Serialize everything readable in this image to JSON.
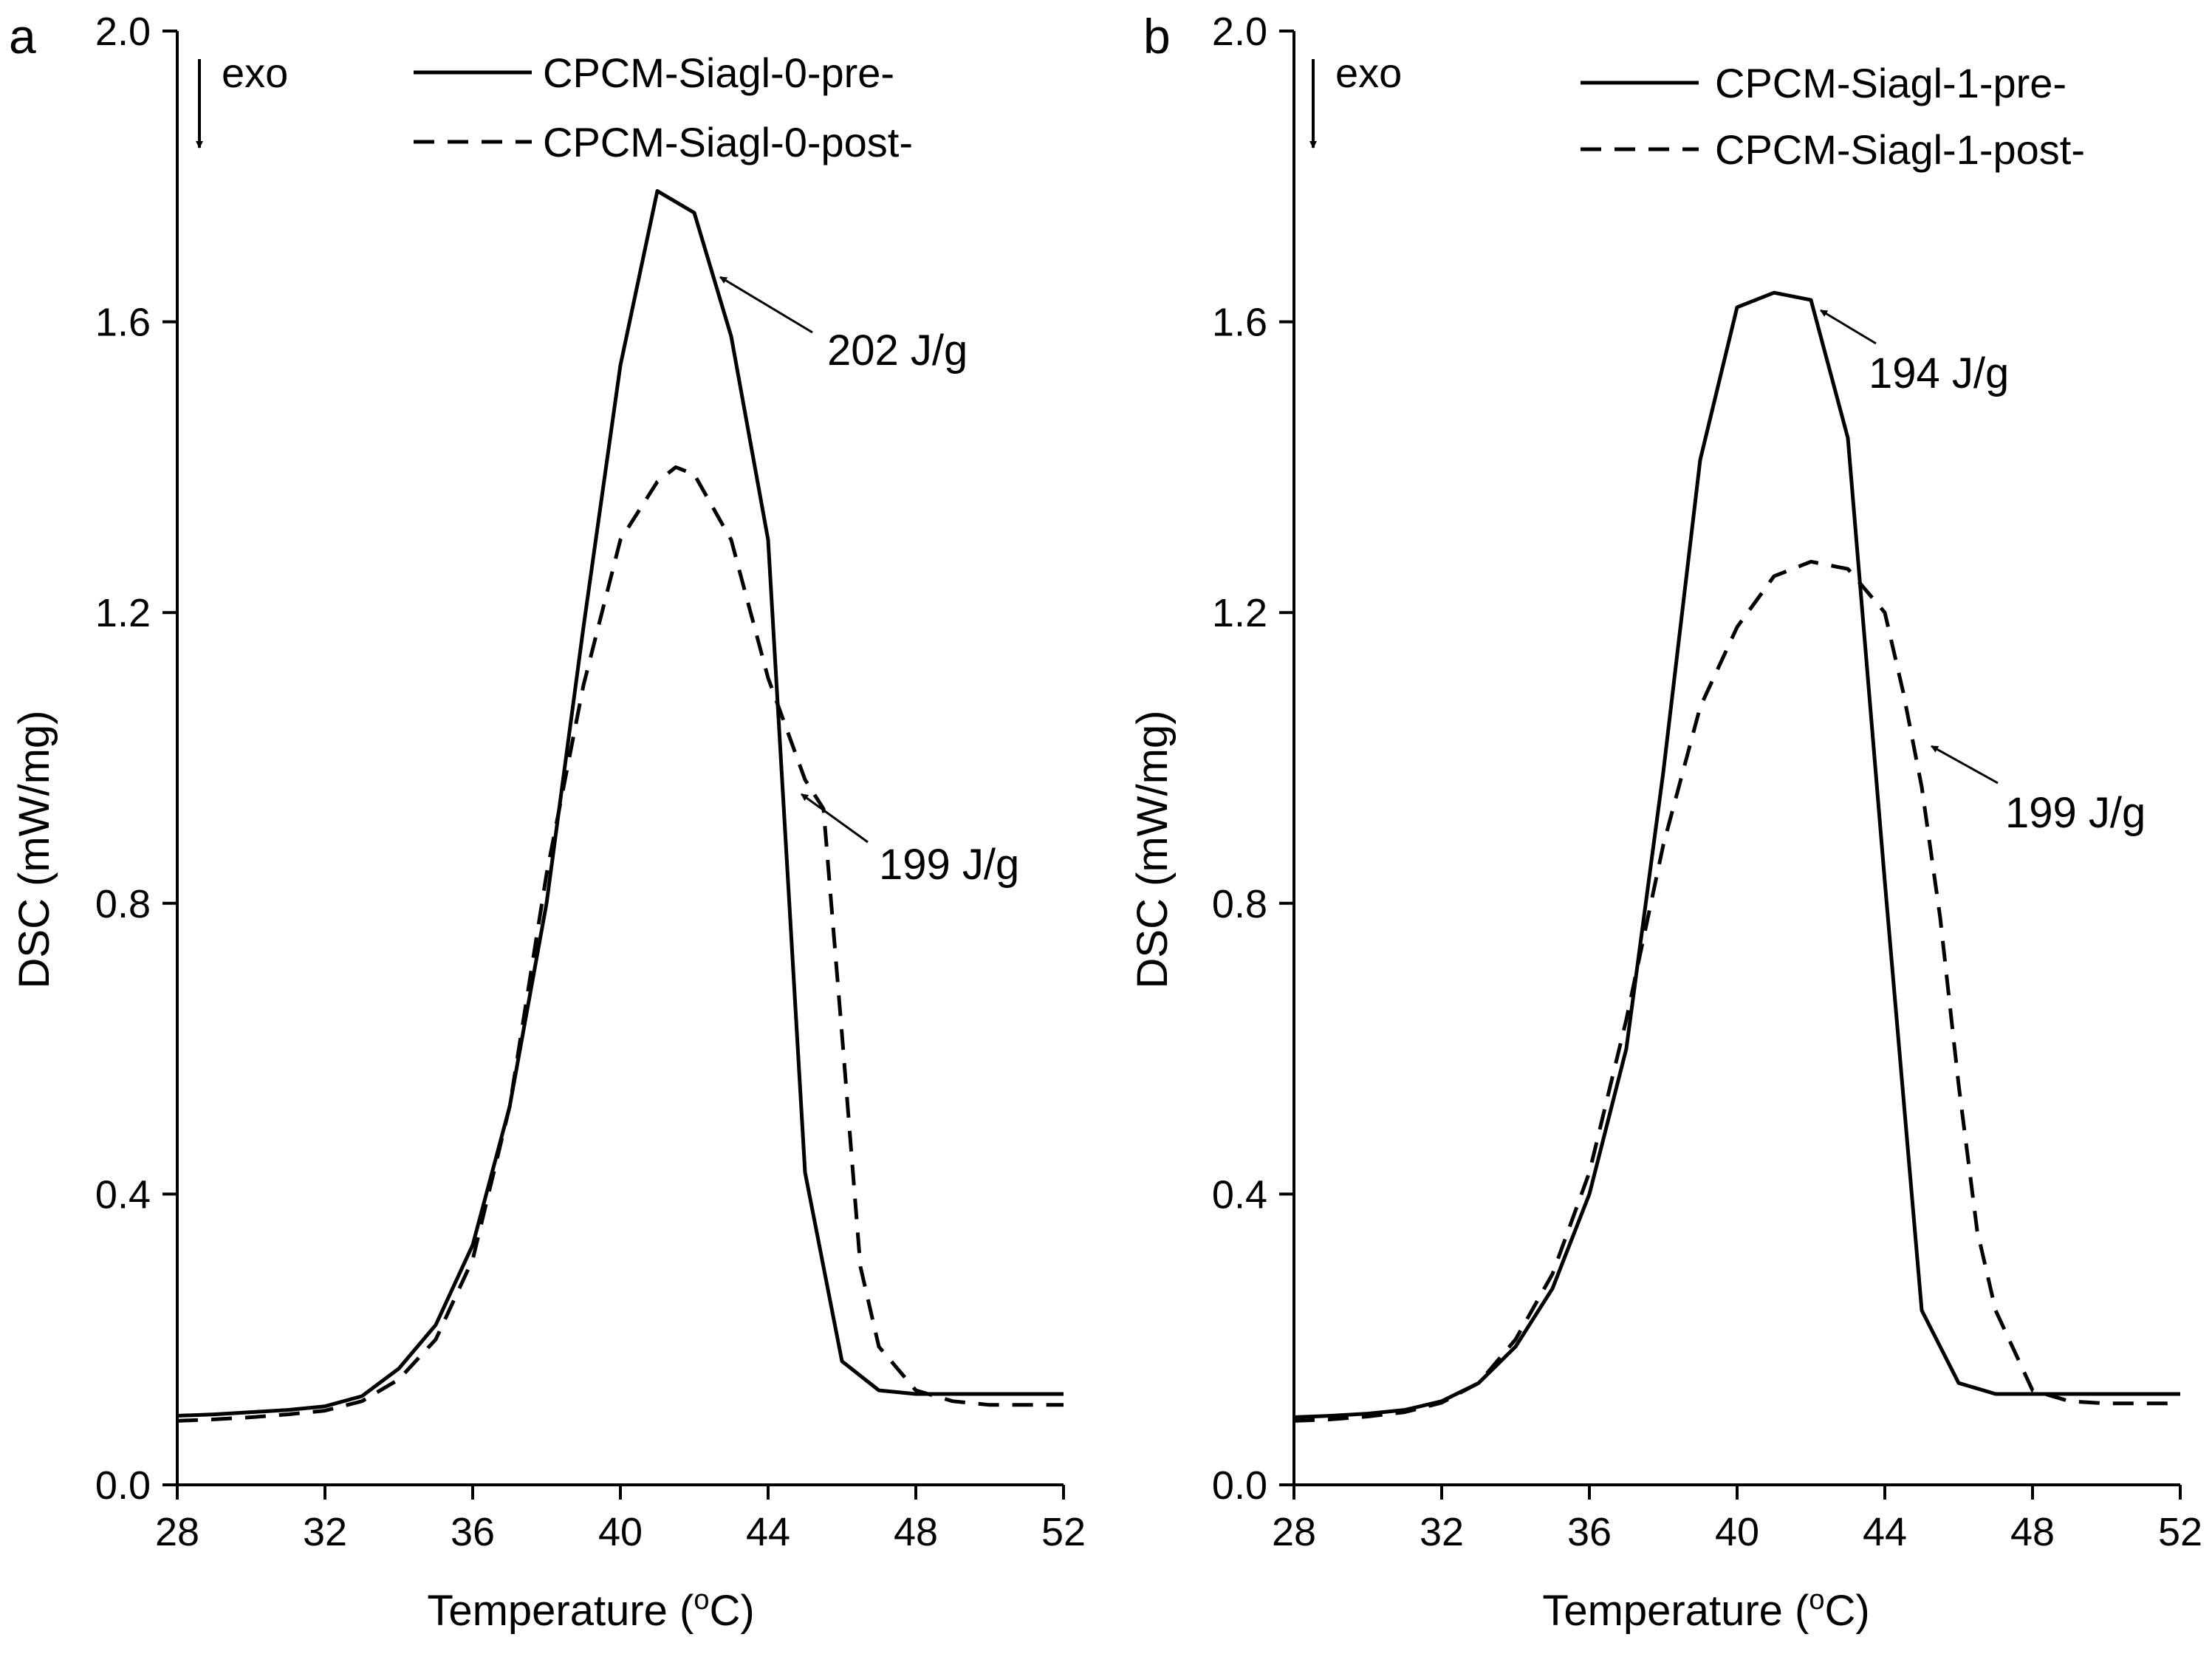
{
  "chart_data": [
    {
      "type": "line",
      "panel": "a",
      "xlabel": "Temperature (",
      "xlabel_sup": "o",
      "xlabel_suffix": "C)",
      "ylabel": "DSC (mW/mg)",
      "xlim": [
        28,
        52
      ],
      "ylim": [
        0,
        2.0
      ],
      "xticks": [
        "28",
        "32",
        "36",
        "40",
        "44",
        "48",
        "52"
      ],
      "yticks": [
        "0.0",
        "0.4",
        "0.8",
        "1.2",
        "1.6",
        "2.0"
      ],
      "exo_label": "exo",
      "legend": [
        "CPCM-Siagl-0-pre-",
        "CPCM-Siagl-0-post-"
      ],
      "series": [
        {
          "name": "CPCM-Siagl-0-pre-",
          "style": "solid",
          "x": [
            28,
            29,
            30,
            31,
            32,
            33,
            34,
            35,
            36,
            37,
            38,
            39,
            40,
            41,
            42,
            43,
            44,
            45,
            46,
            47,
            48,
            49,
            50,
            51,
            52
          ],
          "y": [
            0.095,
            0.097,
            0.1,
            0.103,
            0.108,
            0.122,
            0.16,
            0.22,
            0.33,
            0.52,
            0.8,
            1.18,
            1.54,
            1.78,
            1.75,
            1.58,
            1.3,
            0.43,
            0.17,
            0.13,
            0.125,
            0.125,
            0.125,
            0.125,
            0.125
          ]
        },
        {
          "name": "CPCM-Siagl-0-post-",
          "style": "dashed",
          "x": [
            28,
            29,
            30,
            31,
            32,
            33,
            34,
            35,
            36,
            37,
            38,
            39,
            40,
            41,
            41.5,
            42,
            43,
            44,
            45,
            45.5,
            46,
            46.5,
            47,
            48,
            49,
            50,
            51,
            52
          ],
          "y": [
            0.088,
            0.09,
            0.093,
            0.097,
            0.102,
            0.115,
            0.145,
            0.2,
            0.31,
            0.52,
            0.84,
            1.1,
            1.3,
            1.38,
            1.4,
            1.39,
            1.3,
            1.11,
            0.97,
            0.93,
            0.62,
            0.3,
            0.19,
            0.13,
            0.115,
            0.11,
            0.11,
            0.11
          ]
        }
      ],
      "annotations": [
        "202 J/g",
        "199 J/g"
      ]
    },
    {
      "type": "line",
      "panel": "b",
      "xlabel": "Temperature (",
      "xlabel_sup": "o",
      "xlabel_suffix": "C)",
      "ylabel": "DSC (mW/mg)",
      "xlim": [
        28,
        52
      ],
      "ylim": [
        0,
        2.0
      ],
      "xticks": [
        "28",
        "32",
        "36",
        "40",
        "44",
        "48",
        "52"
      ],
      "yticks": [
        "0.0",
        "0.4",
        "0.8",
        "1.2",
        "1.6",
        "2.0"
      ],
      "exo_label": "exo",
      "legend": [
        "CPCM-Siagl-1-pre-",
        "CPCM-Siagl-1-post-"
      ],
      "series": [
        {
          "name": "CPCM-Siagl-1-pre-",
          "style": "solid",
          "x": [
            28,
            29,
            30,
            31,
            32,
            33,
            34,
            35,
            36,
            37,
            38,
            39,
            40,
            41,
            42,
            43,
            44,
            45,
            46,
            47,
            48,
            49,
            50,
            51,
            52
          ],
          "y": [
            0.093,
            0.095,
            0.098,
            0.103,
            0.115,
            0.14,
            0.19,
            0.27,
            0.4,
            0.6,
            0.98,
            1.41,
            1.62,
            1.64,
            1.63,
            1.44,
            0.83,
            0.24,
            0.14,
            0.125,
            0.125,
            0.125,
            0.125,
            0.125,
            0.125
          ]
        },
        {
          "name": "CPCM-Siagl-1-post-",
          "style": "dashed",
          "x": [
            28,
            29,
            30,
            31,
            32,
            33,
            34,
            35,
            36,
            37,
            38,
            39,
            40,
            41,
            42,
            43,
            44,
            44.5,
            45,
            45.5,
            46,
            46.5,
            47,
            48,
            49,
            50,
            51,
            52
          ],
          "y": [
            0.088,
            0.09,
            0.094,
            0.1,
            0.113,
            0.14,
            0.2,
            0.29,
            0.43,
            0.64,
            0.88,
            1.07,
            1.18,
            1.25,
            1.27,
            1.26,
            1.2,
            1.09,
            0.96,
            0.78,
            0.55,
            0.35,
            0.24,
            0.13,
            0.115,
            0.112,
            0.112,
            0.112
          ]
        }
      ],
      "annotations": [
        "194 J/g",
        "199 J/g"
      ]
    }
  ]
}
